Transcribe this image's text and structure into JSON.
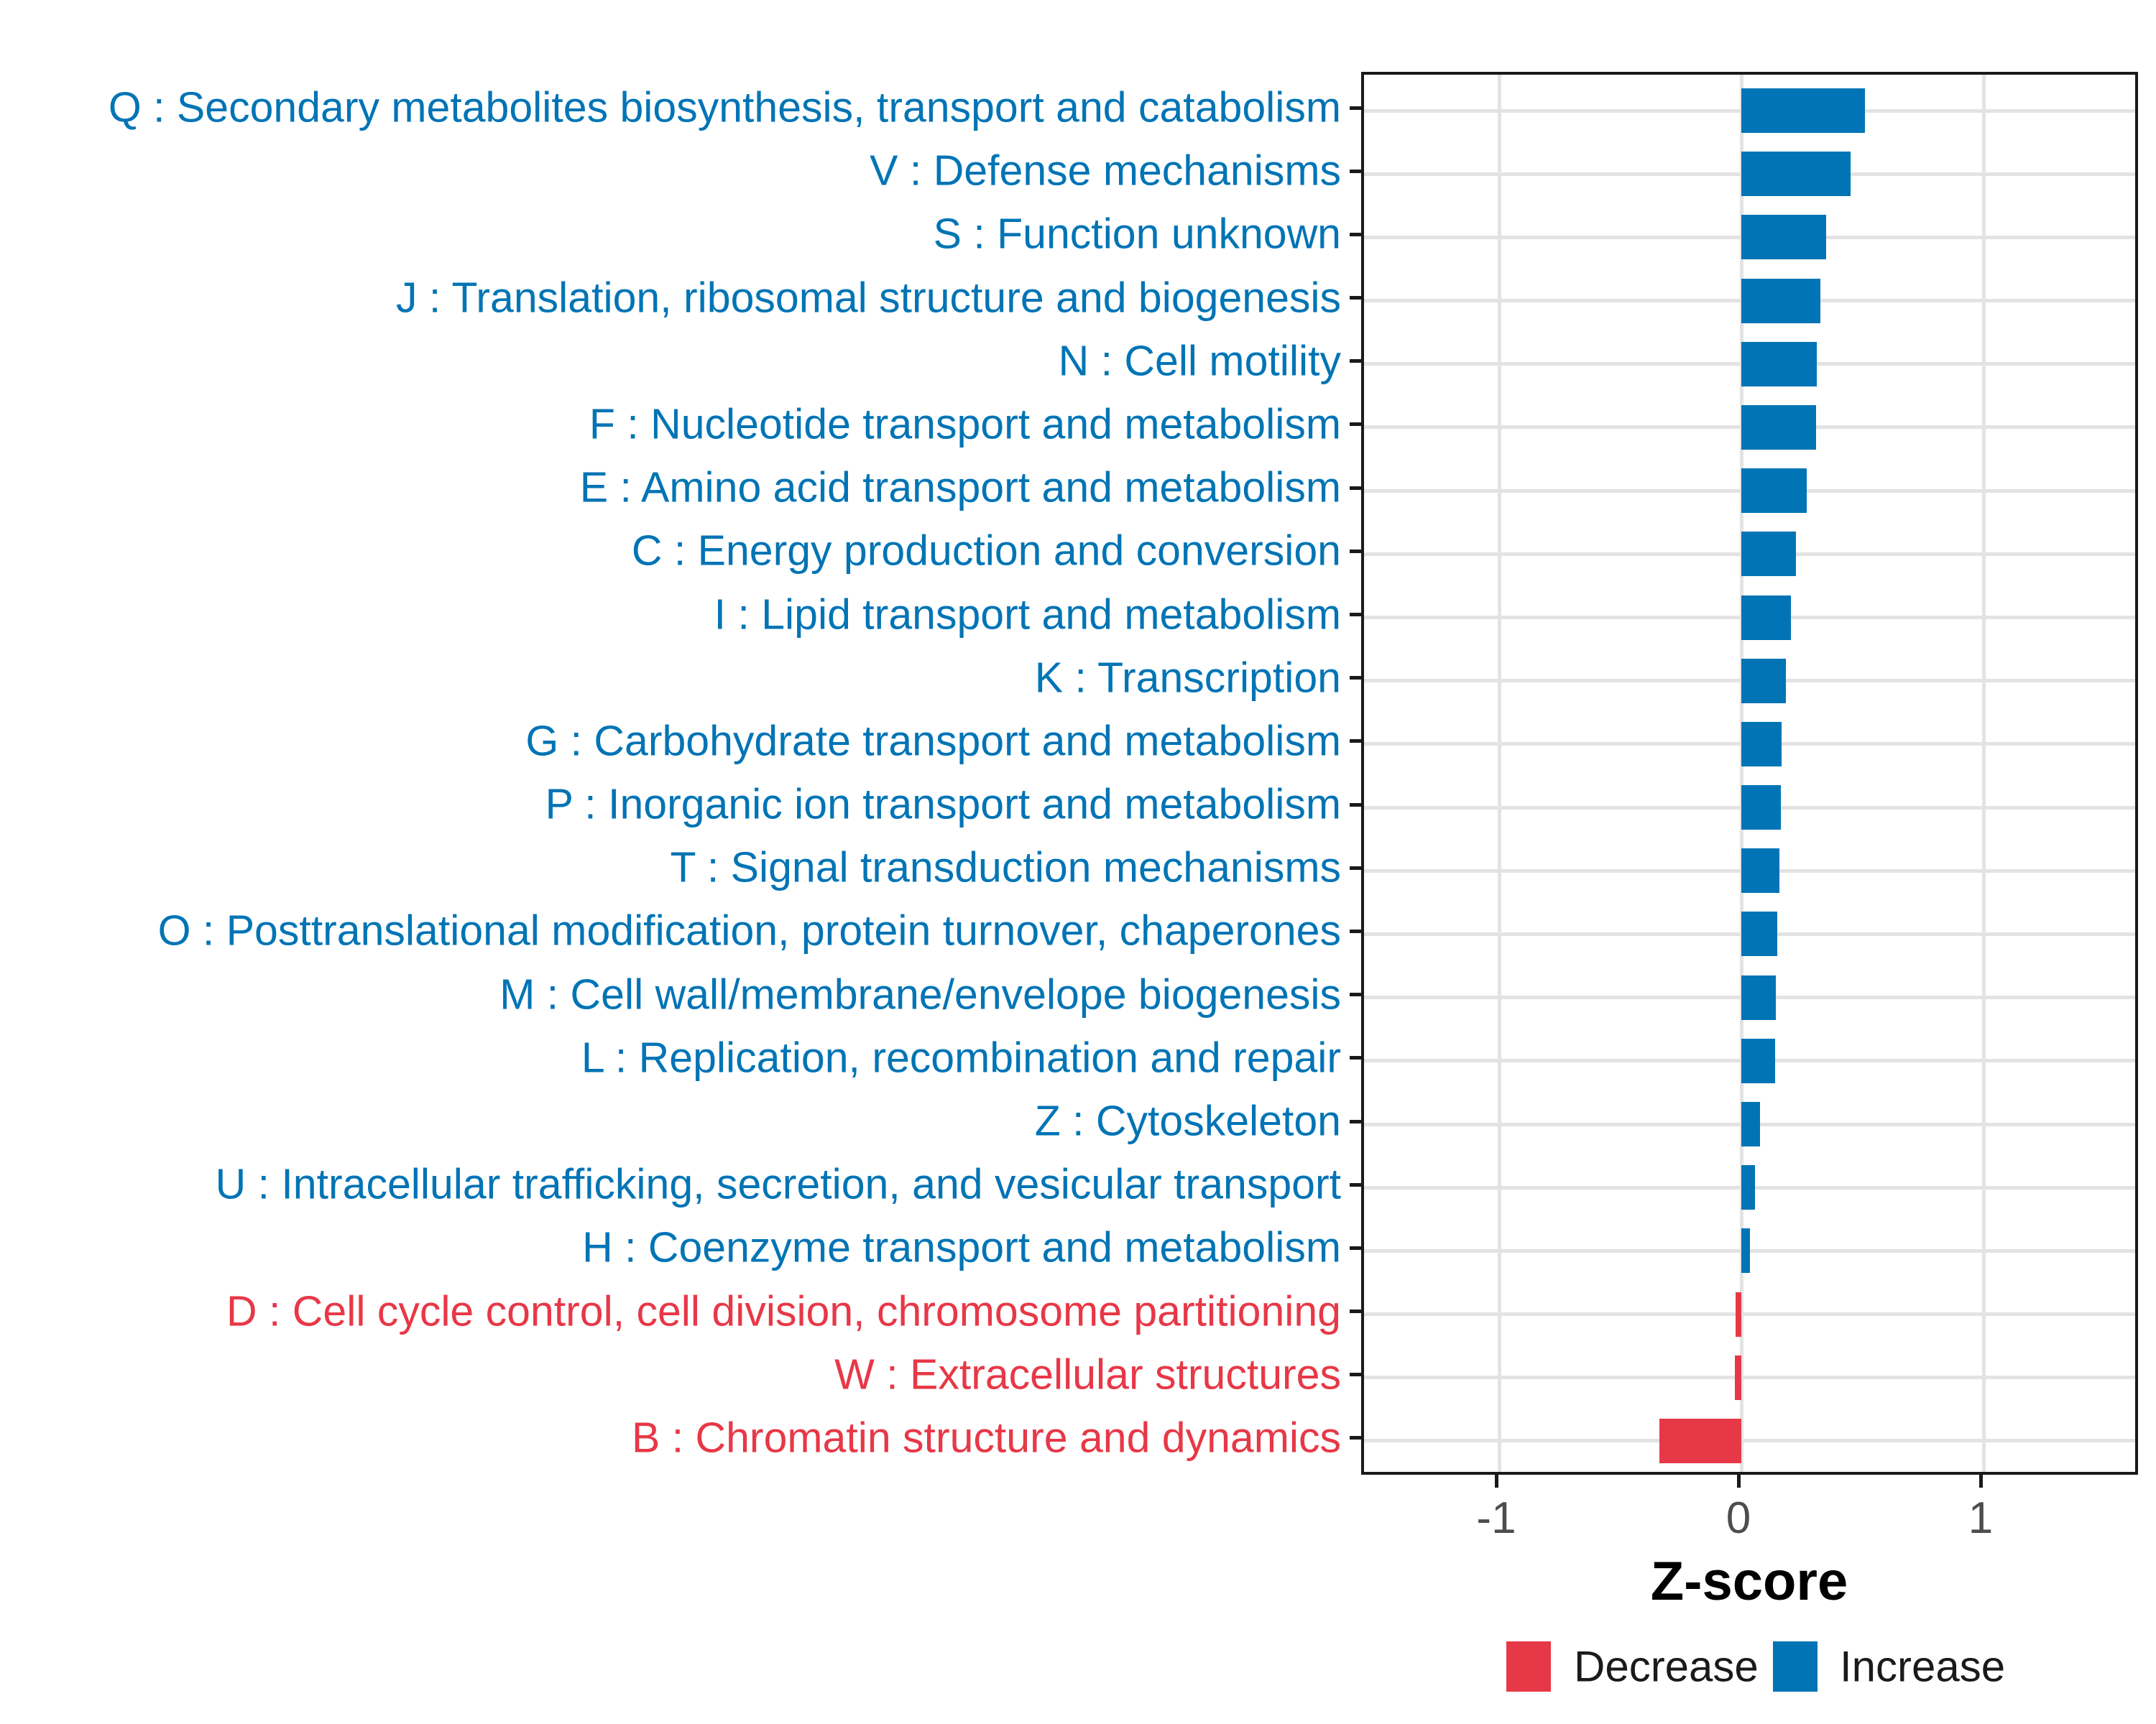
{
  "chart_data": {
    "type": "bar",
    "orientation": "horizontal",
    "title": "",
    "xlabel": "Z-score",
    "ylabel": "",
    "xlim": [
      -1.56,
      1.65
    ],
    "x_ticks": [
      -1,
      0,
      1
    ],
    "x_tick_labels": [
      "-1",
      "0",
      "1"
    ],
    "grid": {
      "vertical_at_values": [
        -1,
        0,
        1
      ],
      "horizontal": "one line per category center"
    },
    "legend_position": "bottom-right",
    "legend": [
      {
        "label": "Decrease",
        "color": "#E73847"
      },
      {
        "label": "Increase",
        "color": "#0074B5"
      }
    ],
    "label_separator": " : ",
    "categories": [
      {
        "code": "Q",
        "name": "Secondary metabolites biosynthesis, transport and catabolism",
        "value": 0.51,
        "direction": "increase"
      },
      {
        "code": "V",
        "name": "Defense mechanisms",
        "value": 0.45,
        "direction": "increase"
      },
      {
        "code": "S",
        "name": "Function unknown",
        "value": 0.35,
        "direction": "increase"
      },
      {
        "code": "J",
        "name": "Translation, ribosomal structure and biogenesis",
        "value": 0.325,
        "direction": "increase"
      },
      {
        "code": "N",
        "name": "Cell motility",
        "value": 0.312,
        "direction": "increase"
      },
      {
        "code": "F",
        "name": "Nucleotide transport and metabolism",
        "value": 0.308,
        "direction": "increase"
      },
      {
        "code": "E",
        "name": "Amino acid transport and metabolism",
        "value": 0.27,
        "direction": "increase"
      },
      {
        "code": "C",
        "name": "Energy production and conversion",
        "value": 0.225,
        "direction": "increase"
      },
      {
        "code": "I",
        "name": "Lipid transport and metabolism",
        "value": 0.205,
        "direction": "increase"
      },
      {
        "code": "K",
        "name": "Transcription",
        "value": 0.185,
        "direction": "increase"
      },
      {
        "code": "G",
        "name": "Carbohydrate transport and metabolism",
        "value": 0.167,
        "direction": "increase"
      },
      {
        "code": "P",
        "name": "Inorganic ion transport and metabolism",
        "value": 0.164,
        "direction": "increase"
      },
      {
        "code": "T",
        "name": "Signal transduction mechanisms",
        "value": 0.157,
        "direction": "increase"
      },
      {
        "code": "O",
        "name": "Posttranslational modification, protein turnover, chaperones",
        "value": 0.148,
        "direction": "increase"
      },
      {
        "code": "M",
        "name": "Cell wall/membrane/envelope biogenesis",
        "value": 0.143,
        "direction": "increase"
      },
      {
        "code": "L",
        "name": "Replication, recombination and repair",
        "value": 0.139,
        "direction": "increase"
      },
      {
        "code": "Z",
        "name": "Cytoskeleton",
        "value": 0.077,
        "direction": "increase"
      },
      {
        "code": "U",
        "name": "Intracellular trafficking, secretion, and vesicular transport",
        "value": 0.056,
        "direction": "increase"
      },
      {
        "code": "H",
        "name": "Coenzyme transport and metabolism",
        "value": 0.036,
        "direction": "increase"
      },
      {
        "code": "D",
        "name": "Cell cycle control, cell division, chromosome partitioning",
        "value": -0.025,
        "direction": "decrease"
      },
      {
        "code": "W",
        "name": "Extracellular structures",
        "value": -0.028,
        "direction": "decrease"
      },
      {
        "code": "B",
        "name": "Chromatin structure and dynamics",
        "value": -0.338,
        "direction": "decrease"
      }
    ]
  },
  "colors": {
    "increase": "#0074B5",
    "decrease": "#E73847",
    "gridline": "#E3E3E3",
    "axis_text": "#4D4D4D",
    "panel_border": "#1A1A1A"
  }
}
